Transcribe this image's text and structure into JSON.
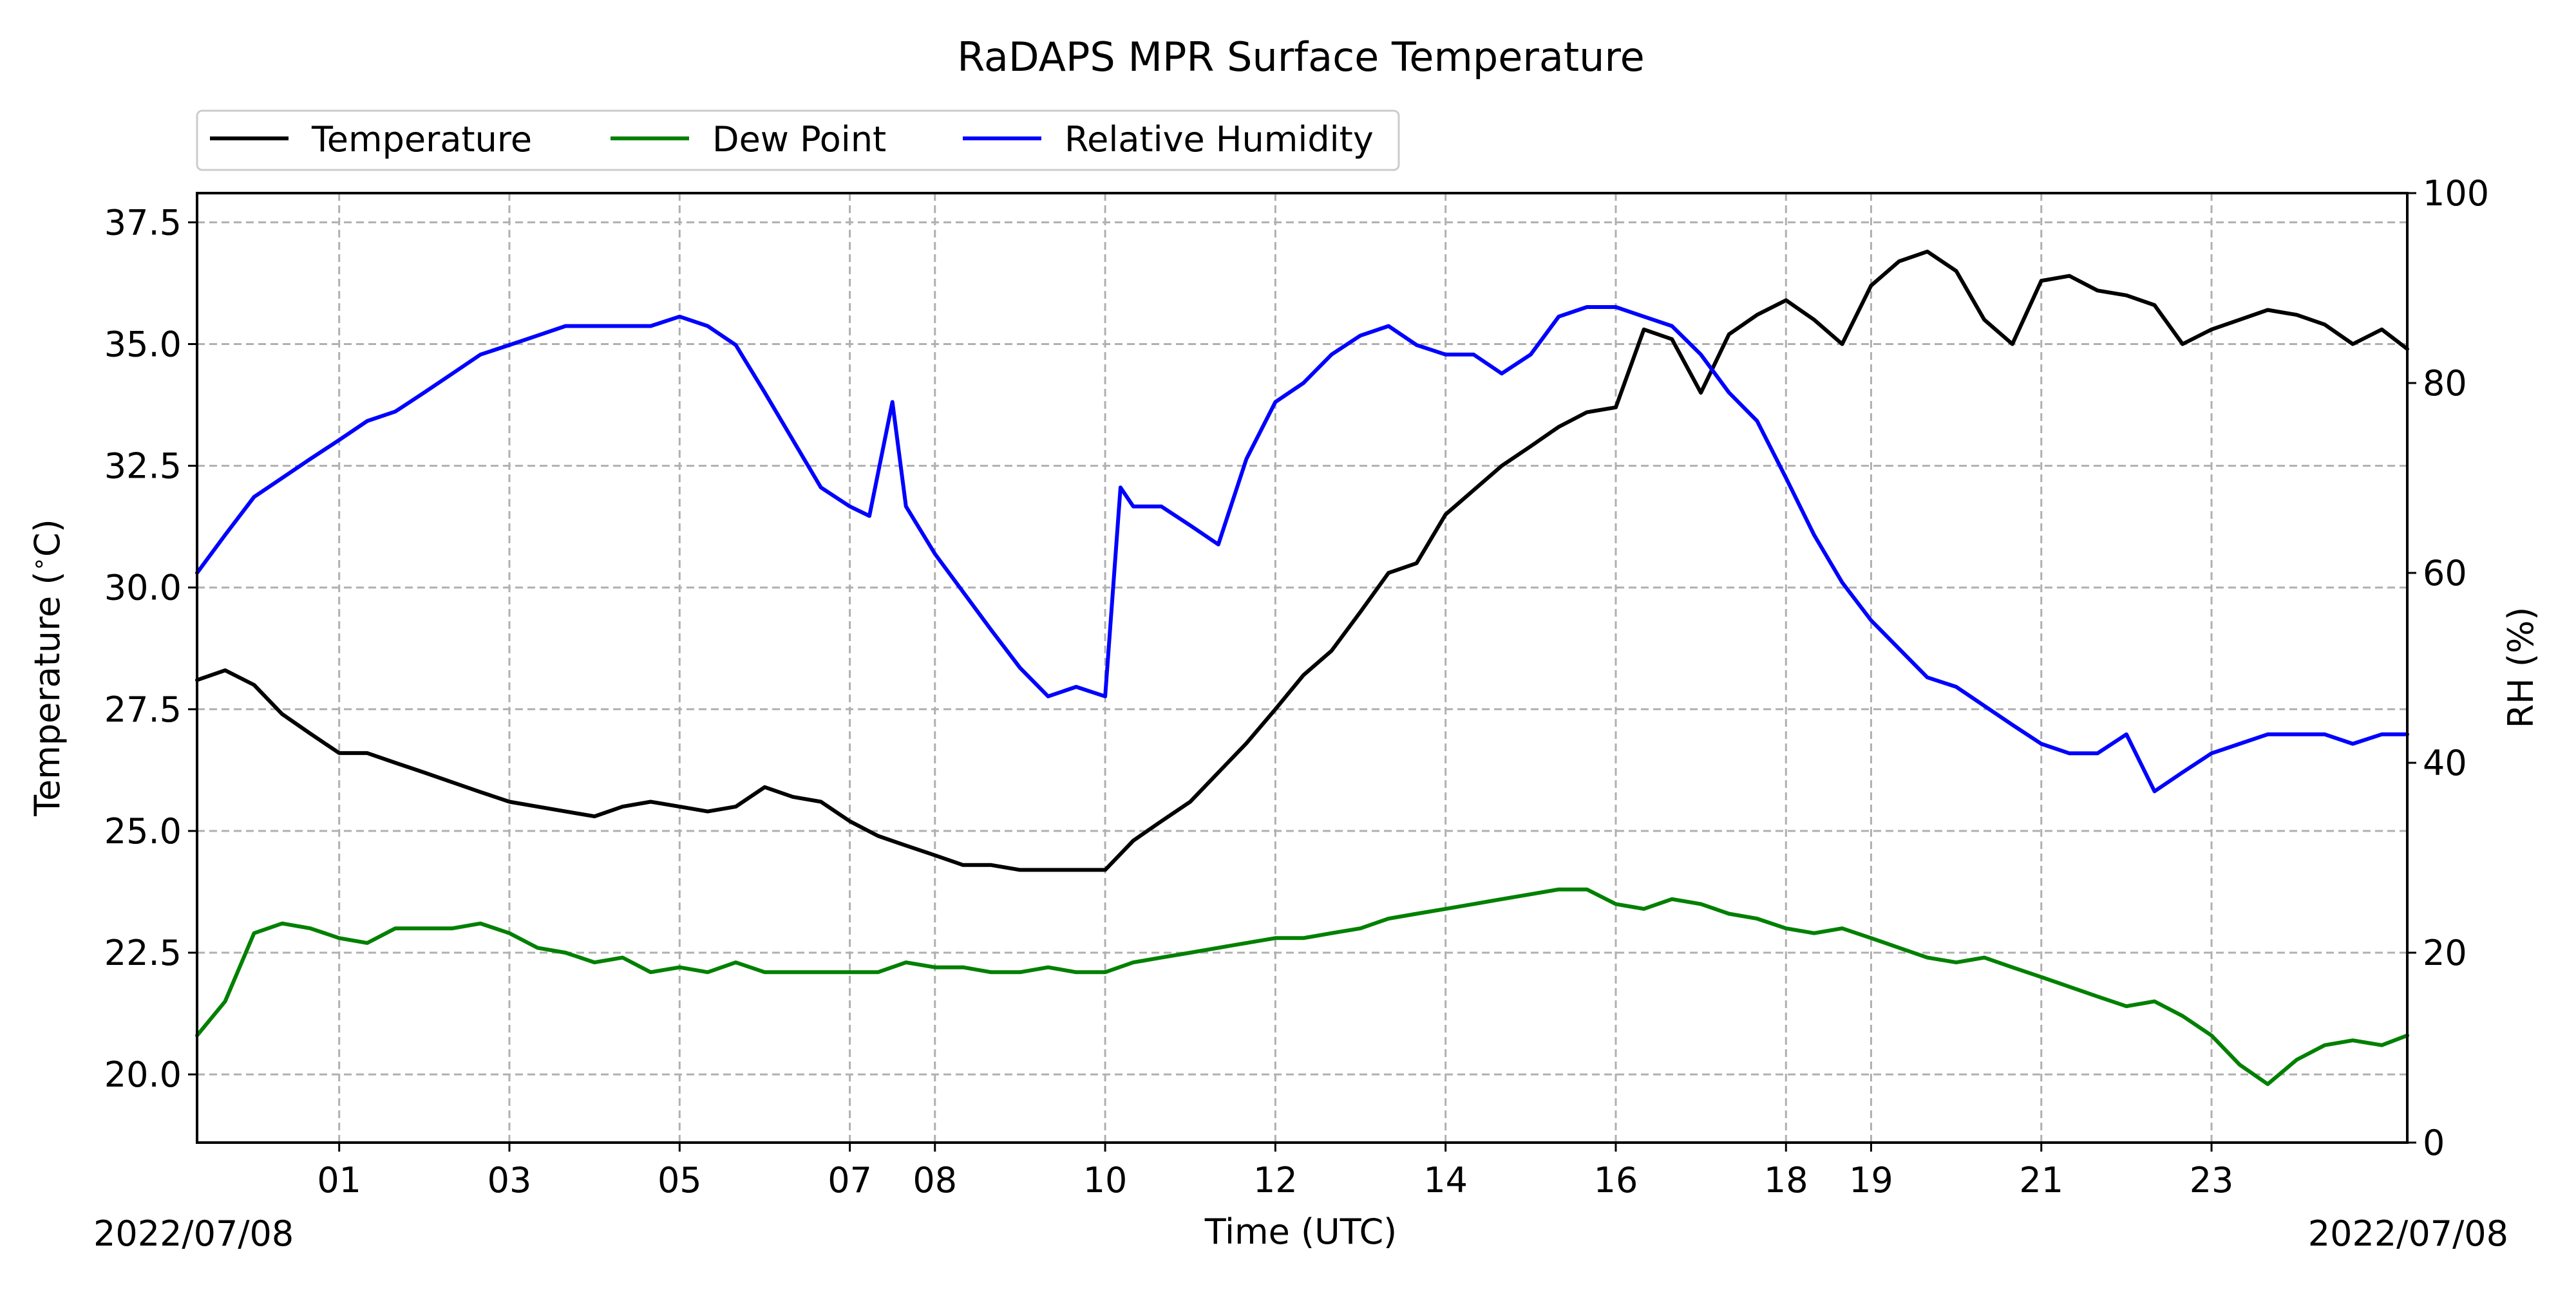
{
  "chart_data": {
    "type": "line",
    "title": "RaDAPS MPR Surface Temperature",
    "xlabel": "Time (UTC)",
    "ylabel_left": "Temperature ($^\\circ$C)",
    "ylabel_right": "RH (%)",
    "date_label_left": "2022/07/08",
    "date_label_right": "2022/07/08",
    "x_tick_labels": [
      "01",
      "03",
      "05",
      "07",
      "08",
      "10",
      "12",
      "14",
      "16",
      "18",
      "19",
      "21",
      "23"
    ],
    "x_tick_hours": [
      1.67,
      3.67,
      5.67,
      7.67,
      8.67,
      10.67,
      12.67,
      14.67,
      16.67,
      18.67,
      19.67,
      21.67,
      23.67
    ],
    "xlim_hours": [
      0.0,
      25.97
    ],
    "ylim_left": [
      18.6,
      38.1
    ],
    "ylim_right": [
      0,
      100
    ],
    "yticks_left": [
      20.0,
      22.5,
      25.0,
      27.5,
      30.0,
      32.5,
      35.0,
      37.5
    ],
    "yticks_left_labels": [
      "20.0",
      "22.5",
      "25.0",
      "27.5",
      "30.0",
      "32.5",
      "35.0",
      "37.5"
    ],
    "yticks_right": [
      0,
      20,
      40,
      60,
      80,
      100
    ],
    "yticks_right_labels": [
      "0",
      "20",
      "40",
      "60",
      "80",
      "100"
    ],
    "grid": true,
    "legend_position": "top-left, above plot",
    "series": [
      {
        "name": "Temperature",
        "axis": "left",
        "color": "#000000",
        "x": [
          0.0,
          0.33,
          0.67,
          1.0,
          1.33,
          1.67,
          2.0,
          2.33,
          2.67,
          3.0,
          3.33,
          3.67,
          4.0,
          4.33,
          4.67,
          5.0,
          5.33,
          5.67,
          6.0,
          6.33,
          6.67,
          7.0,
          7.33,
          7.67,
          8.0,
          8.33,
          8.67,
          9.0,
          9.33,
          9.67,
          10.0,
          10.33,
          10.67,
          11.0,
          11.33,
          11.67,
          12.0,
          12.33,
          12.67,
          13.0,
          13.33,
          13.67,
          14.0,
          14.33,
          14.67,
          15.0,
          15.33,
          15.67,
          16.0,
          16.33,
          16.67,
          17.0,
          17.33,
          17.67,
          18.0,
          18.33,
          18.67,
          19.0,
          19.33,
          19.67,
          20.0,
          20.33,
          20.67,
          21.0,
          21.33,
          21.67,
          22.0,
          22.33,
          22.67,
          23.0,
          23.33,
          23.67,
          24.0,
          24.33,
          24.67,
          25.0,
          25.33,
          25.67,
          25.97
        ],
        "values": [
          28.1,
          28.3,
          28.0,
          27.4,
          27.0,
          26.6,
          26.6,
          26.4,
          26.2,
          26.0,
          25.8,
          25.6,
          25.5,
          25.4,
          25.3,
          25.5,
          25.6,
          25.5,
          25.4,
          25.5,
          25.9,
          25.7,
          25.6,
          25.2,
          24.9,
          24.7,
          24.5,
          24.3,
          24.3,
          24.2,
          24.2,
          24.2,
          24.2,
          24.8,
          25.2,
          25.6,
          26.2,
          26.8,
          27.5,
          28.2,
          28.7,
          29.5,
          30.3,
          30.5,
          31.5,
          32.0,
          32.5,
          32.9,
          33.3,
          33.6,
          33.7,
          35.3,
          35.1,
          34.0,
          35.2,
          35.6,
          35.9,
          35.5,
          35.0,
          36.2,
          36.7,
          36.9,
          36.5,
          35.5,
          35.0,
          36.3,
          36.4,
          36.1,
          36.0,
          35.8,
          35.0,
          35.3,
          35.5,
          35.7,
          35.6,
          35.4,
          35.0,
          35.3,
          34.9
        ]
      },
      {
        "name": "Dew Point",
        "axis": "left",
        "color": "#008000",
        "x": [
          0.0,
          0.33,
          0.67,
          1.0,
          1.33,
          1.67,
          2.0,
          2.33,
          2.67,
          3.0,
          3.33,
          3.67,
          4.0,
          4.33,
          4.67,
          5.0,
          5.33,
          5.67,
          6.0,
          6.33,
          6.67,
          7.0,
          7.33,
          7.67,
          8.0,
          8.33,
          8.67,
          9.0,
          9.33,
          9.67,
          10.0,
          10.33,
          10.67,
          11.0,
          11.33,
          11.67,
          12.0,
          12.33,
          12.67,
          13.0,
          13.33,
          13.67,
          14.0,
          14.33,
          14.67,
          15.0,
          15.33,
          15.67,
          16.0,
          16.33,
          16.67,
          17.0,
          17.33,
          17.67,
          18.0,
          18.33,
          18.67,
          19.0,
          19.33,
          19.67,
          20.0,
          20.33,
          20.67,
          21.0,
          21.33,
          21.67,
          22.0,
          22.33,
          22.67,
          23.0,
          23.33,
          23.67,
          24.0,
          24.33,
          24.67,
          25.0,
          25.33,
          25.67,
          25.97
        ],
        "values": [
          20.8,
          21.5,
          22.9,
          23.1,
          23.0,
          22.8,
          22.7,
          23.0,
          23.0,
          23.0,
          23.1,
          22.9,
          22.6,
          22.5,
          22.3,
          22.4,
          22.1,
          22.2,
          22.1,
          22.3,
          22.1,
          22.1,
          22.1,
          22.1,
          22.1,
          22.3,
          22.2,
          22.2,
          22.1,
          22.1,
          22.2,
          22.1,
          22.1,
          22.3,
          22.4,
          22.5,
          22.6,
          22.7,
          22.8,
          22.8,
          22.9,
          23.0,
          23.2,
          23.3,
          23.4,
          23.5,
          23.6,
          23.7,
          23.8,
          23.8,
          23.5,
          23.4,
          23.6,
          23.5,
          23.3,
          23.2,
          23.0,
          22.9,
          23.0,
          22.8,
          22.6,
          22.4,
          22.3,
          22.4,
          22.2,
          22.0,
          21.8,
          21.6,
          21.4,
          21.5,
          21.2,
          20.8,
          20.2,
          19.8,
          20.3,
          20.6,
          20.7,
          20.6,
          20.8
        ]
      },
      {
        "name": "Relative Humidity",
        "axis": "right",
        "color": "#0000ff",
        "x": [
          0.0,
          0.33,
          0.67,
          1.0,
          1.33,
          1.67,
          2.0,
          2.33,
          2.67,
          3.0,
          3.33,
          3.67,
          4.0,
          4.33,
          4.67,
          5.0,
          5.33,
          5.67,
          6.0,
          6.33,
          6.67,
          7.0,
          7.33,
          7.67,
          7.9,
          8.17,
          8.33,
          8.67,
          9.0,
          9.33,
          9.67,
          10.0,
          10.33,
          10.67,
          10.85,
          11.0,
          11.33,
          11.67,
          12.0,
          12.33,
          12.67,
          13.0,
          13.33,
          13.67,
          14.0,
          14.33,
          14.67,
          15.0,
          15.33,
          15.67,
          16.0,
          16.33,
          16.67,
          17.0,
          17.33,
          17.67,
          18.0,
          18.33,
          18.67,
          19.0,
          19.33,
          19.67,
          20.0,
          20.33,
          20.67,
          21.0,
          21.33,
          21.67,
          22.0,
          22.33,
          22.67,
          23.0,
          23.33,
          23.67,
          24.0,
          24.33,
          24.67,
          25.0,
          25.33,
          25.67,
          25.97
        ],
        "values": [
          60,
          64,
          68,
          70,
          72,
          74,
          76,
          77,
          79,
          81,
          83,
          84,
          85,
          86,
          86,
          86,
          86,
          87,
          86,
          84,
          79,
          74,
          69,
          67,
          66,
          78,
          67,
          62,
          58,
          54,
          50,
          47,
          48,
          47,
          69,
          67,
          67,
          65,
          63,
          72,
          78,
          80,
          83,
          85,
          86,
          84,
          83,
          83,
          81,
          83,
          87,
          88,
          88,
          87,
          86,
          83,
          79,
          76,
          70,
          64,
          59,
          55,
          52,
          49,
          48,
          46,
          44,
          42,
          41,
          41,
          43,
          37,
          39,
          41,
          42,
          43,
          43,
          43,
          42,
          43,
          43
        ]
      }
    ]
  }
}
